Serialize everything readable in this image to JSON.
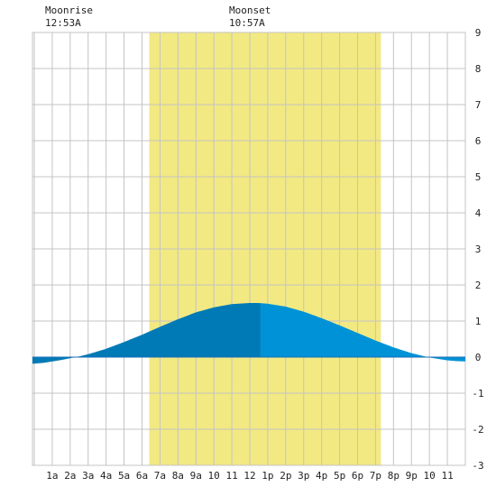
{
  "moon": {
    "moonrise_label": "Moonrise",
    "moonrise_time": "12:53A",
    "moonset_label": "Moonset",
    "moonset_time": "10:57A"
  },
  "chart_data": {
    "type": "area",
    "title": "",
    "xlabel": "",
    "ylabel": "",
    "x_tick_labels": [
      "1a",
      "2a",
      "3a",
      "4a",
      "5a",
      "6a",
      "7a",
      "8a",
      "9a",
      "10",
      "11",
      "12",
      "1p",
      "2p",
      "3p",
      "4p",
      "5p",
      "6p",
      "7p",
      "8p",
      "9p",
      "10",
      "11"
    ],
    "x_range_hours": [
      -0.1,
      24.0
    ],
    "y_range": [
      -3,
      9
    ],
    "y_ticks": [
      -3,
      -2,
      -1,
      0,
      1,
      2,
      3,
      4,
      5,
      6,
      7,
      8,
      9
    ],
    "daylight_hours": [
      6.4,
      19.3
    ],
    "grid": true,
    "colors": {
      "daylight": "#f2e982",
      "tide_fill": "#0092d6",
      "tide_fill_before_now": "#007ab6",
      "grid": "#c4c4c4",
      "zero_line": "#1a6fb8"
    },
    "series": [
      {
        "hours": [
          -0.1,
          0,
          0.5,
          1,
          1.5,
          2,
          2.5,
          3,
          4,
          5,
          6,
          7,
          8,
          9,
          10,
          11,
          12,
          12.5,
          13,
          14,
          15,
          16,
          17,
          18,
          19,
          20,
          21,
          22,
          23,
          23.5,
          24.0
        ],
        "values": [
          -0.18,
          -0.18,
          -0.16,
          -0.12,
          -0.08,
          -0.03,
          0.02,
          0.08,
          0.23,
          0.42,
          0.62,
          0.84,
          1.05,
          1.24,
          1.38,
          1.47,
          1.5,
          1.5,
          1.48,
          1.4,
          1.26,
          1.08,
          0.88,
          0.67,
          0.46,
          0.27,
          0.11,
          -0.01,
          -0.09,
          -0.11,
          -0.12
        ]
      }
    ],
    "now_hour": 12.6
  }
}
